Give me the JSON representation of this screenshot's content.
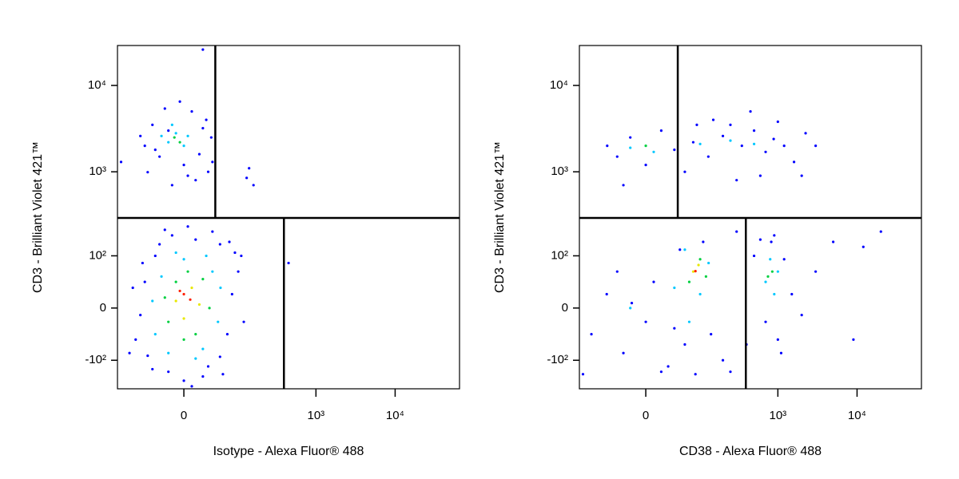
{
  "chart_data": [
    {
      "type": "scatter",
      "xscale": "biexponential",
      "yscale": "biexponential",
      "x_label": "Isotype - Alexa Fluor® 488",
      "y_label": "CD3 - Brilliant Violet 421™",
      "xlim": [
        -145,
        65000
      ],
      "ylim": [
        -225,
        29000
      ],
      "xticks": [
        0,
        {
          "value": 1000,
          "label": "10³"
        },
        {
          "value": 10000,
          "label": "10⁴"
        }
      ],
      "yticks": [
        {
          "value": -100,
          "label": "-10²"
        },
        0,
        {
          "value": 100,
          "label": "10²"
        },
        {
          "value": 1000,
          "label": "10³"
        },
        {
          "value": 10000,
          "label": "10⁴"
        }
      ],
      "gates": {
        "y": 290,
        "x_upper": 45,
        "x_lower": 393
      },
      "series": [
        {
          "color": "#0000ff",
          "x": [
            -82,
            -60,
            -54,
            -40,
            -33,
            -20,
            -15,
            0,
            15,
            33,
            54,
            70,
            82,
            100,
            90,
            54,
            25,
            -70,
            -90,
            -45,
            119,
            40,
            -25,
            10,
            60,
            -65,
            110,
            75,
            5,
            -100,
            -54,
            -33,
            -15,
            0,
            15,
            33,
            40,
            -60,
            -45,
            -25,
            10,
            30,
            38,
            -70,
            -40,
            20,
            -5,
            -20,
            25,
            5,
            130,
            160,
            140,
            -130,
            450,
            25
          ],
          "values": [
            -50,
            40,
            -87,
            100,
            140,
            -140,
            180,
            -180,
            160,
            -120,
            -90,
            -40,
            20,
            60,
            110,
            140,
            -160,
            -10,
            30,
            -130,
            -20,
            200,
            210,
            -210,
            -150,
            80,
            100,
            150,
            230,
            -80,
            990,
            1500,
            700,
            1200,
            800,
            1000,
            1300,
            2000,
            3500,
            5400,
            5000,
            4000,
            2500,
            2600,
            1800,
            1600,
            6500,
            3000,
            3200,
            900,
            850,
            700,
            1100,
            1300,
            80,
            26000
          ]
        },
        {
          "color": "#00c8ff",
          "x": [
            -40,
            -30,
            -20,
            0,
            25,
            40,
            50,
            -45,
            15,
            30,
            -10,
            55,
            -20,
            -10,
            0,
            -15,
            5,
            -30
          ],
          "values": [
            -40,
            50,
            -80,
            90,
            -70,
            60,
            -20,
            10,
            -95,
            100,
            110,
            30,
            2200,
            2800,
            2000,
            3500,
            2600,
            2600
          ]
        },
        {
          "color": "#00d040",
          "x": [
            -20,
            -10,
            15,
            25,
            35,
            -25,
            5,
            0,
            -12,
            -5
          ],
          "values": [
            -20,
            40,
            -40,
            45,
            0,
            15,
            60,
            -50,
            2500,
            2200
          ]
        },
        {
          "color": "#e8e800",
          "x": [
            -10,
            10,
            20,
            0
          ],
          "values": [
            10,
            30,
            5,
            -15
          ]
        },
        {
          "color": "#ff2000",
          "x": [
            0,
            8,
            -5
          ],
          "values": [
            20,
            12,
            25
          ]
        }
      ]
    },
    {
      "type": "scatter",
      "xscale": "biexponential",
      "yscale": "biexponential",
      "x_label": "CD38 - Alexa Fluor® 488",
      "y_label": "CD3 - Brilliant Violet 421™",
      "xlim": [
        -145,
        65000
      ],
      "ylim": [
        -225,
        29000
      ],
      "xticks": [
        0,
        {
          "value": 1000,
          "label": "10³"
        },
        {
          "value": 10000,
          "label": "10⁴"
        }
      ],
      "yticks": [
        {
          "value": -100,
          "label": "-10²"
        },
        0,
        {
          "value": 100,
          "label": "10²"
        },
        {
          "value": 1000,
          "label": "10³"
        },
        {
          "value": 10000,
          "label": "10⁴"
        }
      ],
      "gates": {
        "y": 290,
        "x_upper": 46,
        "x_lower": 393
      },
      "series": [
        {
          "color": "#0000ff",
          "x": [
            -59,
            -40,
            -20,
            0,
            20,
            40,
            80,
            129,
            200,
            350,
            500,
            700,
            885,
            1200,
            1600,
            2240,
            3000,
            150,
            300,
            600,
            90,
            -30,
            250,
            1000,
            60,
            450,
            2000,
            -100,
            -60,
            -30,
            -18,
            0,
            10,
            30,
            50,
            60,
            86,
            110,
            140,
            200,
            300,
            400,
            500,
            700,
            825,
            1000,
            1200,
            1500,
            2000,
            3000,
            5000,
            -130,
            20,
            40,
            -40,
            250,
            600,
            900,
            1100,
            12000,
            9000,
            20000
          ],
          "values": [
            2000,
            1500,
            2500,
            1200,
            3000,
            1800,
            2200,
            1500,
            2600,
            2000,
            3000,
            1700,
            2400,
            2000,
            1300,
            2800,
            2000,
            4000,
            800,
            900,
            3500,
            700,
            3500,
            3800,
            1000,
            5000,
            900,
            -40,
            20,
            -80,
            7,
            -20,
            40,
            -120,
            120,
            -60,
            -150,
            150,
            -40,
            -100,
            200,
            -60,
            100,
            -20,
            150,
            -50,
            90,
            20,
            -10,
            60,
            150,
            -150,
            -140,
            -30,
            60,
            -140,
            160,
            180,
            -80,
            130,
            -50,
            200
          ]
        },
        {
          "color": "#00c8ff",
          "x": [
            -20,
            10,
            100,
            250,
            500,
            40,
            60,
            100,
            130,
            70,
            700,
            800,
            1000,
            900,
            -20
          ],
          "values": [
            1900,
            1700,
            2100,
            2300,
            2100,
            30,
            120,
            20,
            80,
            -20,
            40,
            90,
            60,
            20,
            0
          ]
        },
        {
          "color": "#00d040",
          "x": [
            0,
            70,
            100,
            120,
            850,
            750
          ],
          "values": [
            2000,
            40,
            90,
            50,
            60,
            50
          ]
        },
        {
          "color": "#e8e800",
          "x": [
            80,
            95
          ],
          "values": [
            60,
            75
          ]
        },
        {
          "color": "#ff2000",
          "x": [
            86
          ],
          "values": [
            61
          ]
        }
      ]
    }
  ]
}
